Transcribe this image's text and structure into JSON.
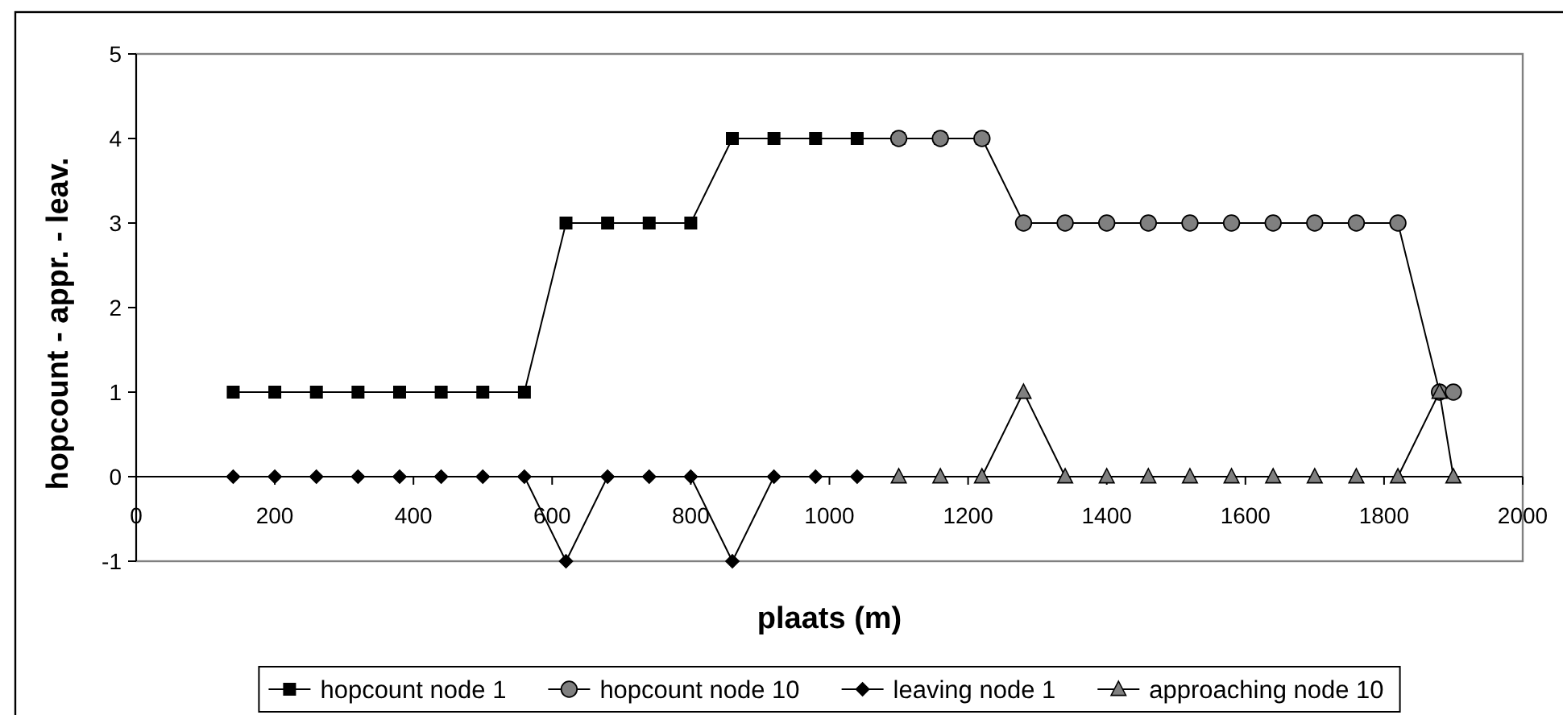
{
  "chart_data": {
    "type": "line",
    "xlabel": "plaats (m)",
    "ylabel": "hopcount - appr. - leav.",
    "xlim": [
      0,
      2000
    ],
    "xticks": [
      0,
      200,
      400,
      600,
      800,
      1000,
      1200,
      1400,
      1600,
      1800,
      2000
    ],
    "ylim": [
      -1,
      5
    ],
    "yticks": [
      -1,
      0,
      1,
      2,
      3,
      4,
      5
    ],
    "legend": "bottom",
    "line_style": "solid",
    "series": [
      {
        "name": "hopcount node 1",
        "color": "#000000",
        "marker": "square",
        "x": [
          140,
          200,
          260,
          320,
          380,
          440,
          500,
          560,
          620,
          680,
          740,
          800,
          860,
          920,
          980,
          1040,
          1100,
          1160,
          1220
        ],
        "values": [
          1,
          1,
          1,
          1,
          1,
          1,
          1,
          1,
          3,
          3,
          3,
          3,
          4,
          4,
          4,
          4,
          4,
          4,
          4
        ]
      },
      {
        "name": "hopcount node 10",
        "color": "#808080",
        "marker": "circle",
        "x": [
          1100,
          1160,
          1220,
          1280,
          1340,
          1400,
          1460,
          1520,
          1580,
          1640,
          1700,
          1760,
          1820,
          1880,
          1900
        ],
        "values": [
          4,
          4,
          4,
          3,
          3,
          3,
          3,
          3,
          3,
          3,
          3,
          3,
          3,
          1,
          1
        ]
      },
      {
        "name": "leaving node 1",
        "color": "#000000",
        "marker": "diamond",
        "x": [
          140,
          200,
          260,
          320,
          380,
          440,
          500,
          560,
          620,
          680,
          740,
          800,
          860,
          920,
          980,
          1040
        ],
        "values": [
          0,
          0,
          0,
          0,
          0,
          0,
          0,
          0,
          -1,
          0,
          0,
          0,
          -1,
          0,
          0,
          0
        ]
      },
      {
        "name": "approaching node 10",
        "color": "#808080",
        "marker": "triangle",
        "x": [
          1100,
          1160,
          1220,
          1280,
          1340,
          1400,
          1460,
          1520,
          1580,
          1640,
          1700,
          1760,
          1820,
          1880,
          1900
        ],
        "values": [
          0,
          0,
          0,
          1,
          0,
          0,
          0,
          0,
          0,
          0,
          0,
          0,
          0,
          1,
          0
        ]
      }
    ]
  }
}
